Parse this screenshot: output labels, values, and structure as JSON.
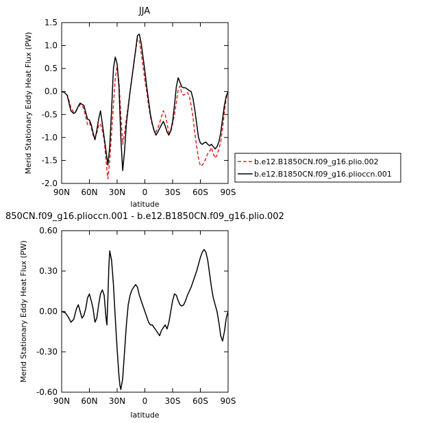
{
  "chart_data": [
    {
      "type": "line",
      "title": "JJA",
      "xlabel": "latitude",
      "ylabel": "Merid Stationary Eddy Heat Flux (PW)",
      "xlim": [
        90,
        -90
      ],
      "ylim": [
        -2.0,
        1.5
      ],
      "x_ticks": [
        90,
        60,
        30,
        0,
        -30,
        -60,
        -90
      ],
      "x_tick_labels": [
        "90N",
        "60N",
        "30N",
        "0",
        "30S",
        "60S",
        "90S"
      ],
      "y_ticks": [
        -2.0,
        -1.5,
        -1.0,
        -0.5,
        0.0,
        0.5,
        1.0,
        1.5
      ],
      "y_tick_labels": [
        "-2.0",
        "-1.5",
        "-1.0",
        "-0.5",
        "0.0",
        "0.5",
        "1.0",
        "1.5"
      ],
      "legend_position": "right",
      "series": [
        {
          "name": "b.e12.B1850CN.f09_g16.plio.002",
          "color": "#e8201c",
          "style": "dashed",
          "x": [
            90,
            87,
            84,
            82,
            80,
            77,
            75,
            72,
            70,
            68,
            66,
            64,
            62,
            60,
            58,
            56,
            54,
            52,
            50,
            48,
            46,
            44,
            42,
            40,
            38,
            36,
            34,
            32,
            30,
            28,
            26,
            24,
            22,
            20,
            18,
            16,
            14,
            12,
            10,
            8,
            6,
            4,
            2,
            0,
            -2,
            -4,
            -6,
            -8,
            -10,
            -12,
            -14,
            -16,
            -18,
            -20,
            -22,
            -24,
            -26,
            -28,
            -30,
            -32,
            -34,
            -36,
            -38,
            -40,
            -42,
            -44,
            -46,
            -48,
            -50,
            -52,
            -54,
            -56,
            -58,
            -60,
            -62,
            -64,
            -66,
            -68,
            -70,
            -72,
            -74,
            -76,
            -78,
            -80,
            -82,
            -84,
            -86,
            -88,
            -90
          ],
          "y": [
            0.0,
            -0.02,
            -0.08,
            -0.2,
            -0.35,
            -0.45,
            -0.43,
            -0.35,
            -0.28,
            -0.3,
            -0.38,
            -0.55,
            -0.72,
            -0.68,
            -0.78,
            -0.95,
            -1.02,
            -0.9,
            -0.75,
            -0.7,
            -0.85,
            -1.05,
            -1.5,
            -1.9,
            -1.5,
            -0.9,
            -0.3,
            0.3,
            0.55,
            0.2,
            -0.5,
            -1.15,
            -0.9,
            -0.6,
            -0.3,
            0.0,
            0.3,
            0.6,
            0.9,
            1.15,
            1.1,
            0.85,
            0.55,
            0.25,
            0.0,
            -0.3,
            -0.55,
            -0.72,
            -0.85,
            -0.88,
            -0.8,
            -0.68,
            -0.55,
            -0.42,
            -0.5,
            -0.7,
            -0.9,
            -0.88,
            -0.7,
            -0.5,
            -0.25,
            0.05,
            0.12,
            -0.05,
            -0.08,
            -0.05,
            -0.02,
            -0.1,
            -0.3,
            -0.55,
            -0.9,
            -1.2,
            -1.45,
            -1.62,
            -1.6,
            -1.55,
            -1.45,
            -1.35,
            -1.3,
            -1.22,
            -1.35,
            -1.45,
            -1.38,
            -1.25,
            -1.1,
            -0.8,
            -0.45,
            -0.15,
            0.0
          ]
        },
        {
          "name": "b.e12.B1850CN.f09_g16.plioccn.001",
          "color": "#000000",
          "style": "solid",
          "x": [
            90,
            87,
            84,
            82,
            80,
            77,
            75,
            72,
            70,
            68,
            66,
            64,
            62,
            60,
            58,
            56,
            54,
            52,
            50,
            48,
            46,
            44,
            42,
            40,
            38,
            36,
            34,
            32,
            30,
            28,
            26,
            24,
            22,
            20,
            18,
            16,
            14,
            12,
            10,
            8,
            6,
            4,
            2,
            0,
            -2,
            -4,
            -6,
            -8,
            -10,
            -12,
            -14,
            -16,
            -18,
            -20,
            -22,
            -24,
            -26,
            -28,
            -30,
            -32,
            -34,
            -36,
            -38,
            -40,
            -42,
            -44,
            -46,
            -48,
            -50,
            -52,
            -54,
            -56,
            -58,
            -60,
            -62,
            -64,
            -66,
            -68,
            -70,
            -72,
            -74,
            -76,
            -78,
            -80,
            -82,
            -84,
            -86,
            -88,
            -90
          ],
          "y": [
            0.0,
            -0.02,
            -0.08,
            -0.25,
            -0.42,
            -0.48,
            -0.45,
            -0.32,
            -0.25,
            -0.28,
            -0.3,
            -0.45,
            -0.6,
            -0.62,
            -0.72,
            -0.9,
            -1.05,
            -0.85,
            -0.6,
            -0.42,
            -0.7,
            -1.0,
            -1.3,
            -1.6,
            -1.2,
            -0.4,
            0.5,
            0.75,
            0.6,
            0.1,
            -1.0,
            -1.72,
            -1.3,
            -0.7,
            -0.35,
            0.0,
            0.3,
            0.6,
            0.9,
            1.22,
            1.25,
            1.05,
            0.75,
            0.45,
            0.1,
            -0.2,
            -0.5,
            -0.7,
            -0.85,
            -0.95,
            -0.88,
            -0.8,
            -0.72,
            -0.65,
            -0.75,
            -0.88,
            -0.95,
            -0.85,
            -0.65,
            -0.3,
            0.1,
            0.3,
            0.2,
            0.1,
            0.08,
            0.08,
            0.05,
            0.02,
            0.0,
            -0.15,
            -0.4,
            -0.7,
            -1.0,
            -1.12,
            -1.15,
            -1.12,
            -1.1,
            -1.15,
            -1.18,
            -1.15,
            -1.2,
            -1.25,
            -1.2,
            -1.1,
            -0.9,
            -0.6,
            -0.3,
            -0.1,
            0.0
          ]
        }
      ]
    },
    {
      "type": "line",
      "title": "850CN.f09_g16.plioccn.001 - b.e12.B1850CN.f09_g16.plio.002",
      "xlabel": "latitude",
      "ylabel": "Merid Stationary Eddy Heat Flux (PW)",
      "xlim": [
        90,
        -90
      ],
      "ylim": [
        -0.6,
        0.6
      ],
      "x_ticks": [
        90,
        60,
        30,
        0,
        -30,
        -60,
        -90
      ],
      "x_tick_labels": [
        "90N",
        "60N",
        "30N",
        "0",
        "30S",
        "60S",
        "90S"
      ],
      "y_ticks": [
        -0.6,
        -0.3,
        0.0,
        0.3,
        0.6
      ],
      "y_tick_labels": [
        "-0.60",
        "-0.30",
        "0.00",
        "0.30",
        "0.60"
      ],
      "series": [
        {
          "color": "#000000",
          "style": "solid",
          "x": [
            90,
            86,
            83,
            80,
            77,
            74,
            72,
            70,
            68,
            66,
            64,
            62,
            60,
            58,
            56,
            54,
            52,
            50,
            48,
            46,
            44,
            42,
            41,
            40,
            39,
            38,
            36,
            34,
            32,
            30,
            28,
            27,
            26,
            24,
            22,
            20,
            18,
            16,
            14,
            12,
            10,
            8,
            6,
            4,
            2,
            0,
            -2,
            -4,
            -6,
            -8,
            -10,
            -12,
            -14,
            -16,
            -18,
            -20,
            -22,
            -24,
            -26,
            -28,
            -30,
            -32,
            -34,
            -36,
            -38,
            -40,
            -42,
            -44,
            -46,
            -48,
            -50,
            -52,
            -54,
            -56,
            -58,
            -60,
            -62,
            -64,
            -66,
            -68,
            -70,
            -72,
            -74,
            -76,
            -78,
            -80,
            -82,
            -84,
            -86,
            -88,
            -90
          ],
          "y": [
            0.0,
            -0.01,
            -0.04,
            -0.08,
            -0.06,
            0.02,
            0.05,
            0.0,
            -0.05,
            -0.03,
            0.02,
            0.1,
            0.13,
            0.08,
            0.02,
            -0.08,
            -0.05,
            0.05,
            0.13,
            0.16,
            0.12,
            -0.05,
            -0.1,
            0.1,
            0.32,
            0.45,
            0.38,
            0.2,
            -0.05,
            -0.28,
            -0.48,
            -0.55,
            -0.58,
            -0.5,
            -0.3,
            -0.1,
            0.05,
            0.12,
            0.16,
            0.18,
            0.2,
            0.18,
            0.12,
            0.08,
            0.04,
            0.0,
            -0.04,
            -0.08,
            -0.1,
            -0.1,
            -0.12,
            -0.14,
            -0.16,
            -0.18,
            -0.14,
            -0.12,
            -0.1,
            -0.13,
            -0.08,
            0.0,
            0.08,
            0.13,
            0.12,
            0.08,
            0.05,
            0.04,
            0.05,
            0.08,
            0.12,
            0.15,
            0.18,
            0.22,
            0.26,
            0.3,
            0.35,
            0.4,
            0.44,
            0.46,
            0.44,
            0.38,
            0.28,
            0.18,
            0.1,
            0.05,
            0.0,
            -0.08,
            -0.18,
            -0.22,
            -0.15,
            -0.05,
            0.0
          ]
        }
      ]
    }
  ]
}
